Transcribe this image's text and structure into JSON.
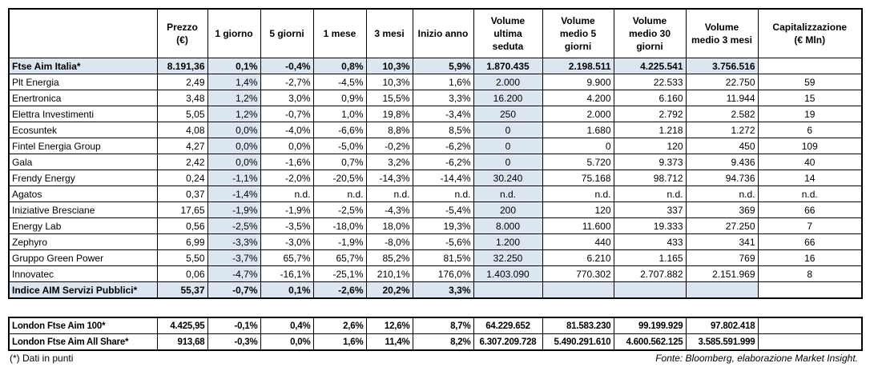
{
  "header": [
    "",
    "Prezzo\n(€)",
    "1 giorno",
    "5 giorni",
    "1 mese",
    "3 mesi",
    "Inizio anno",
    "Volume\nultima\nseduta",
    "Volume\nmedio 5\ngiorni",
    "Volume\nmedio 30\ngiorni",
    "Volume\nmedio 3 mesi",
    "Capitalizzazione\n(€ Mln)"
  ],
  "summary": [
    "Ftse Aim Italia*",
    "8.191,36",
    "0,1%",
    "-0,4%",
    "0,8%",
    "10,3%",
    "5,9%",
    "1.870.435",
    "2.198.511",
    "4.225.541",
    "3.756.516"
  ],
  "rows": [
    [
      "Plt Energia",
      "2,49",
      "1,4%",
      "-2,7%",
      "-4,5%",
      "10,3%",
      "1,6%",
      "2.000",
      "9.900",
      "22.533",
      "22.750",
      "59"
    ],
    [
      "Enertronica",
      "3,48",
      "1,2%",
      "3,0%",
      "0,9%",
      "15,5%",
      "3,3%",
      "16.200",
      "4.200",
      "6.160",
      "11.944",
      "15"
    ],
    [
      "Elettra Investimenti",
      "5,05",
      "1,2%",
      "-0,7%",
      "1,0%",
      "19,8%",
      "-3,4%",
      "250",
      "2.000",
      "2.792",
      "2.582",
      "19"
    ],
    [
      "Ecosuntek",
      "4,08",
      "0,0%",
      "-4,0%",
      "-6,6%",
      "8,8%",
      "8,5%",
      "0",
      "1.680",
      "1.218",
      "1.272",
      "6"
    ],
    [
      "Fintel Energia Group",
      "4,27",
      "0,0%",
      "0,0%",
      "-5,0%",
      "-0,2%",
      "-6,2%",
      "0",
      "0",
      "120",
      "450",
      "109"
    ],
    [
      "Gala",
      "2,42",
      "0,0%",
      "-1,6%",
      "0,7%",
      "3,2%",
      "-6,2%",
      "0",
      "5.720",
      "9.373",
      "9.436",
      "40"
    ],
    [
      "Frendy Energy",
      "0,24",
      "-1,1%",
      "-2,0%",
      "-20,5%",
      "-14,3%",
      "-14,4%",
      "30.240",
      "75.168",
      "98.712",
      "94.736",
      "14"
    ],
    [
      "Agatos",
      "0,37",
      "-1,4%",
      "n.d.",
      "n.d.",
      "n.d.",
      "n.d.",
      "n.d.",
      "n.d.",
      "n.d.",
      "n.d.",
      "n.d."
    ],
    [
      "Iniziative Bresciane",
      "17,65",
      "-1,9%",
      "-1,9%",
      "-2,5%",
      "-4,3%",
      "-5,4%",
      "200",
      "120",
      "337",
      "369",
      "66"
    ],
    [
      "Energy Lab",
      "0,56",
      "-2,5%",
      "-3,5%",
      "-18,0%",
      "18,0%",
      "19,3%",
      "8.000",
      "11.600",
      "19.333",
      "27.250",
      "7"
    ],
    [
      "Zephyro",
      "6,99",
      "-3,3%",
      "-3,0%",
      "-1,9%",
      "-8,0%",
      "-5,6%",
      "1.200",
      "440",
      "433",
      "341",
      "66"
    ],
    [
      "Gruppo Green Power",
      "5,50",
      "-3,7%",
      "65,7%",
      "65,7%",
      "85,2%",
      "81,5%",
      "32.250",
      "6.210",
      "1.165",
      "769",
      "16"
    ],
    [
      "Innovatec",
      "0,06",
      "-4,7%",
      "-16,1%",
      "-25,1%",
      "210,1%",
      "176,0%",
      "1.403.090",
      "770.302",
      "2.707.882",
      "2.151.969",
      "8"
    ]
  ],
  "total": [
    "Indice AIM Servizi Pubblici*",
    "55,37",
    "-0,7%",
    "0,1%",
    "-2,6%",
    "20,2%",
    "3,3%"
  ],
  "london": [
    [
      "London Ftse Aim 100*",
      "4.425,95",
      "-0,1%",
      "0,4%",
      "2,6%",
      "12,6%",
      "8,7%",
      "64.229.652",
      "81.583.230",
      "99.199.929",
      "97.802.418"
    ],
    [
      "London Ftse Aim All Share*",
      "913,68",
      "-0,3%",
      "0,0%",
      "1,6%",
      "11,4%",
      "8,2%",
      "6.307.209.728",
      "5.490.291.610",
      "4.600.562.125",
      "3.585.591.999"
    ]
  ],
  "footnote": "(*) Dati in punti",
  "source": "Fonte: Bloomberg, elaborazione Market Insight."
}
